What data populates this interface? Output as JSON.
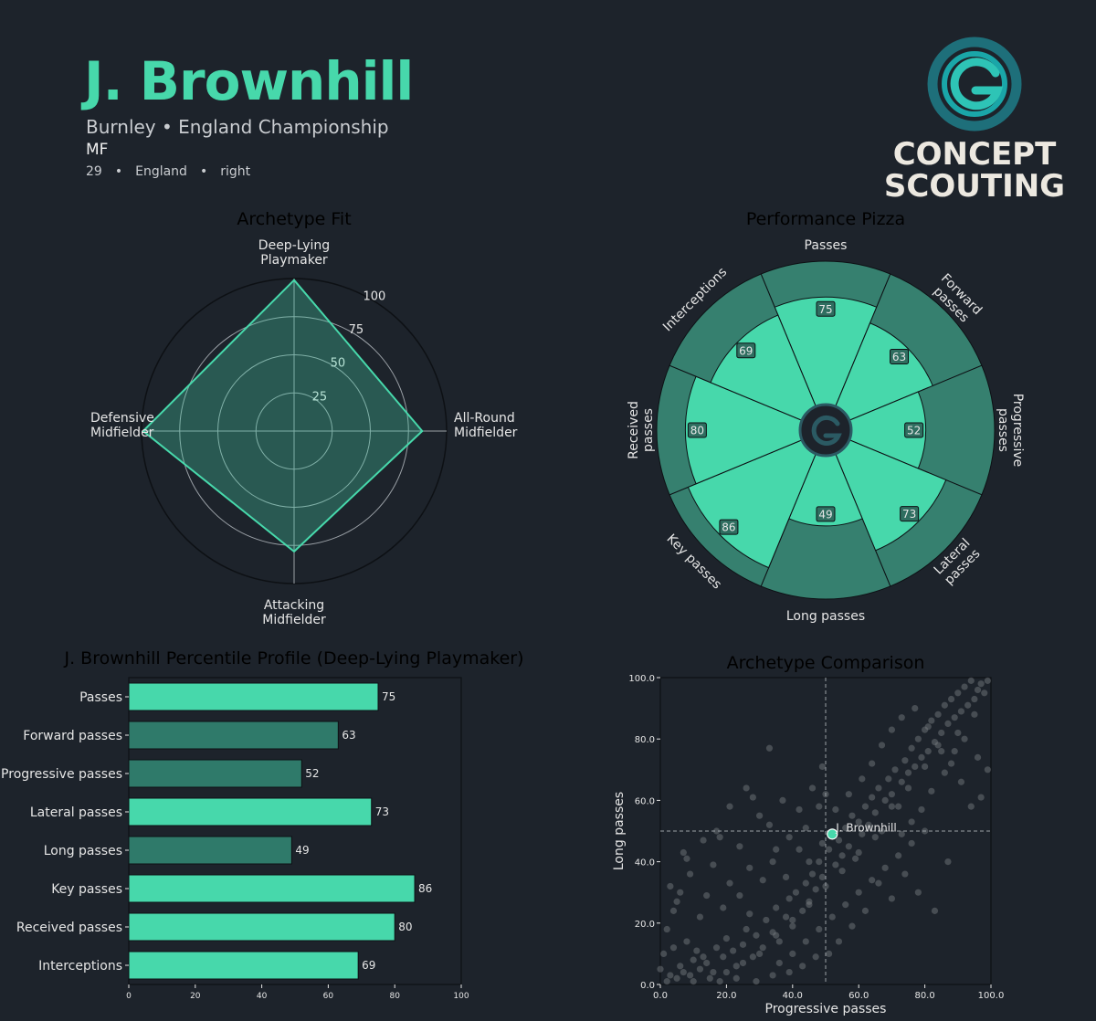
{
  "header": {
    "player_name": "J. Brownhill",
    "club_league": "Burnley • England Championship",
    "position": "MF",
    "age": "29",
    "nation": "England",
    "foot": "right",
    "separator": "•"
  },
  "logo": {
    "line1": "CONCEPT",
    "line2": "SCOUTING",
    "icon": "concept-scouting-logo-icon"
  },
  "colors": {
    "background": "#1d232b",
    "accent": "#47d8ab",
    "dark_accent": "#2f7a6a",
    "pizza_outer": "#36806f",
    "grid": "#9aa0a6"
  },
  "chart_data": [
    {
      "type": "radar",
      "title": "Archetype Fit",
      "axes": [
        "Deep-Lying Playmaker",
        "All-Round Midfielder",
        "Attacking Midfielder",
        "Defensive Midfielder"
      ],
      "axis_lines": [
        [
          "Deep-Lying",
          "Playmaker"
        ],
        [
          "All-Round",
          "Midfielder"
        ],
        [
          "Attacking",
          "Midfielder"
        ],
        [
          "Defensive",
          "Midfielder"
        ]
      ],
      "values": [
        99,
        84,
        79,
        99
      ],
      "rticks": [
        "25",
        "50",
        "75",
        "100"
      ],
      "rtick_values": [
        25,
        50,
        75,
        100
      ],
      "rlim": [
        0,
        100
      ]
    },
    {
      "type": "pizza",
      "title": "Performance Pizza",
      "categories": [
        "Passes",
        "Forward passes",
        "Progressive passes",
        "Lateral passes",
        "Long passes",
        "Key passes",
        "Received passes",
        "Interceptions"
      ],
      "label_lines": [
        [
          "Passes"
        ],
        [
          "Forward",
          "passes"
        ],
        [
          "Progressive",
          "passes"
        ],
        [
          "Lateral",
          "passes"
        ],
        [
          "Long passes"
        ],
        [
          "Key passes"
        ],
        [
          "Received",
          "passes"
        ],
        [
          "Interceptions"
        ]
      ],
      "values": [
        75,
        63,
        52,
        73,
        49,
        86,
        80,
        69
      ],
      "range": [
        0,
        100
      ]
    },
    {
      "type": "bar",
      "orientation": "horizontal",
      "title": "J. Brownhill Percentile Profile (Deep-Lying Playmaker)",
      "categories": [
        "Passes",
        "Forward passes",
        "Progressive passes",
        "Lateral passes",
        "Long passes",
        "Key passes",
        "Received passes",
        "Interceptions"
      ],
      "values": [
        75,
        63,
        52,
        73,
        49,
        86,
        80,
        69
      ],
      "highlight": [
        true,
        false,
        false,
        true,
        false,
        true,
        true,
        true
      ],
      "xlim": [
        0,
        100
      ],
      "xticks": [
        "0",
        "20",
        "40",
        "60",
        "80",
        "100"
      ],
      "xtick_values": [
        0,
        20,
        40,
        60,
        80,
        100
      ]
    },
    {
      "type": "scatter",
      "title": "Archetype Comparison",
      "xlabel": "Progressive passes",
      "ylabel": "Long passes",
      "xlim": [
        0,
        100
      ],
      "ylim": [
        0,
        100
      ],
      "xticks": [
        "0.0",
        "20.0",
        "40.0",
        "60.0",
        "80.0",
        "100.0"
      ],
      "yticks": [
        "0.0",
        "20.0",
        "40.0",
        "60.0",
        "80.0",
        "100.0"
      ],
      "tick_values": [
        0,
        20,
        40,
        60,
        80,
        100
      ],
      "reference_lines": {
        "x": 50,
        "y": 50
      },
      "highlight_point": {
        "label": "J. Brownhill",
        "x": 52,
        "y": 49
      },
      "points": [
        [
          2,
          1
        ],
        [
          3,
          3
        ],
        [
          5,
          2
        ],
        [
          6,
          6
        ],
        [
          7,
          4
        ],
        [
          9,
          3
        ],
        [
          10,
          8
        ],
        [
          12,
          5
        ],
        [
          13,
          9
        ],
        [
          4,
          12
        ],
        [
          8,
          14
        ],
        [
          11,
          11
        ],
        [
          14,
          7
        ],
        [
          16,
          4
        ],
        [
          17,
          12
        ],
        [
          19,
          9
        ],
        [
          20,
          15
        ],
        [
          22,
          11
        ],
        [
          23,
          6
        ],
        [
          25,
          13
        ],
        [
          26,
          18
        ],
        [
          28,
          9
        ],
        [
          29,
          16
        ],
        [
          31,
          12
        ],
        [
          32,
          21
        ],
        [
          34,
          17
        ],
        [
          35,
          25
        ],
        [
          36,
          14
        ],
        [
          38,
          22
        ],
        [
          39,
          28
        ],
        [
          40,
          19
        ],
        [
          41,
          30
        ],
        [
          43,
          24
        ],
        [
          44,
          33
        ],
        [
          45,
          27
        ],
        [
          46,
          36
        ],
        [
          47,
          31
        ],
        [
          48,
          40
        ],
        [
          49,
          35
        ],
        [
          51,
          44
        ],
        [
          53,
          39
        ],
        [
          54,
          47
        ],
        [
          55,
          42
        ],
        [
          56,
          51
        ],
        [
          57,
          45
        ],
        [
          58,
          55
        ],
        [
          59,
          41
        ],
        [
          60,
          53
        ],
        [
          61,
          49
        ],
        [
          62,
          58
        ],
        [
          63,
          52
        ],
        [
          64,
          61
        ],
        [
          65,
          56
        ],
        [
          66,
          64
        ],
        [
          67,
          50
        ],
        [
          68,
          60
        ],
        [
          69,
          67
        ],
        [
          70,
          62
        ],
        [
          71,
          70
        ],
        [
          72,
          58
        ],
        [
          73,
          66
        ],
        [
          74,
          73
        ],
        [
          75,
          69
        ],
        [
          76,
          77
        ],
        [
          77,
          71
        ],
        [
          78,
          80
        ],
        [
          79,
          74
        ],
        [
          80,
          83
        ],
        [
          81,
          76
        ],
        [
          82,
          86
        ],
        [
          83,
          79
        ],
        [
          84,
          88
        ],
        [
          85,
          82
        ],
        [
          86,
          91
        ],
        [
          87,
          85
        ],
        [
          88,
          93
        ],
        [
          89,
          87
        ],
        [
          90,
          95
        ],
        [
          91,
          89
        ],
        [
          92,
          97
        ],
        [
          93,
          91
        ],
        [
          94,
          99
        ],
        [
          95,
          93
        ],
        [
          96,
          96
        ],
        [
          97,
          98
        ],
        [
          98,
          95
        ],
        [
          99,
          99
        ],
        [
          95,
          88
        ],
        [
          90,
          82
        ],
        [
          85,
          76
        ],
        [
          80,
          71
        ],
        [
          75,
          64
        ],
        [
          70,
          58
        ],
        [
          65,
          48
        ],
        [
          60,
          43
        ],
        [
          55,
          37
        ],
        [
          50,
          32
        ],
        [
          45,
          26
        ],
        [
          40,
          21
        ],
        [
          35,
          16
        ],
        [
          30,
          10
        ],
        [
          25,
          7
        ],
        [
          20,
          4
        ],
        [
          15,
          2
        ],
        [
          10,
          1
        ],
        [
          2,
          18
        ],
        [
          3,
          32
        ],
        [
          5,
          27
        ],
        [
          7,
          43
        ],
        [
          9,
          36
        ],
        [
          12,
          22
        ],
        [
          14,
          29
        ],
        [
          16,
          39
        ],
        [
          18,
          48
        ],
        [
          19,
          25
        ],
        [
          21,
          33
        ],
        [
          24,
          45
        ],
        [
          27,
          38
        ],
        [
          28,
          61
        ],
        [
          30,
          55
        ],
        [
          33,
          52
        ],
        [
          35,
          44
        ],
        [
          37,
          60
        ],
        [
          39,
          48
        ],
        [
          42,
          57
        ],
        [
          44,
          51
        ],
        [
          46,
          64
        ],
        [
          48,
          58
        ],
        [
          49,
          71
        ],
        [
          50,
          62
        ],
        [
          36,
          7
        ],
        [
          40,
          10
        ],
        [
          44,
          14
        ],
        [
          48,
          18
        ],
        [
          52,
          22
        ],
        [
          56,
          26
        ],
        [
          60,
          30
        ],
        [
          64,
          34
        ],
        [
          68,
          38
        ],
        [
          72,
          42
        ],
        [
          76,
          46
        ],
        [
          80,
          50
        ],
        [
          83,
          24
        ],
        [
          87,
          40
        ],
        [
          78,
          30
        ],
        [
          74,
          36
        ],
        [
          70,
          28
        ],
        [
          66,
          33
        ],
        [
          62,
          24
        ],
        [
          58,
          19
        ],
        [
          54,
          14
        ],
        [
          51,
          10
        ],
        [
          47,
          9
        ],
        [
          43,
          6
        ],
        [
          39,
          4
        ],
        [
          34,
          3
        ],
        [
          29,
          1
        ],
        [
          23,
          2
        ],
        [
          18,
          1
        ],
        [
          33,
          77
        ],
        [
          26,
          64
        ],
        [
          21,
          58
        ],
        [
          17,
          50
        ],
        [
          13,
          47
        ],
        [
          8,
          41
        ],
        [
          6,
          30
        ],
        [
          4,
          24
        ],
        [
          1,
          10
        ],
        [
          0,
          5
        ],
        [
          24,
          29
        ],
        [
          27,
          23
        ],
        [
          31,
          34
        ],
        [
          34,
          40
        ],
        [
          38,
          35
        ],
        [
          42,
          44
        ],
        [
          45,
          40
        ],
        [
          49,
          46
        ],
        [
          53,
          57
        ],
        [
          57,
          62
        ],
        [
          61,
          67
        ],
        [
          64,
          72
        ],
        [
          67,
          78
        ],
        [
          70,
          83
        ],
        [
          73,
          87
        ],
        [
          77,
          90
        ],
        [
          81,
          84
        ],
        [
          84,
          78
        ],
        [
          88,
          72
        ],
        [
          91,
          66
        ],
        [
          94,
          58
        ],
        [
          97,
          61
        ],
        [
          99,
          70
        ],
        [
          96,
          74
        ],
        [
          92,
          80
        ],
        [
          89,
          76
        ],
        [
          86,
          69
        ],
        [
          82,
          63
        ],
        [
          79,
          57
        ],
        [
          76,
          53
        ],
        [
          73,
          49
        ]
      ]
    }
  ]
}
